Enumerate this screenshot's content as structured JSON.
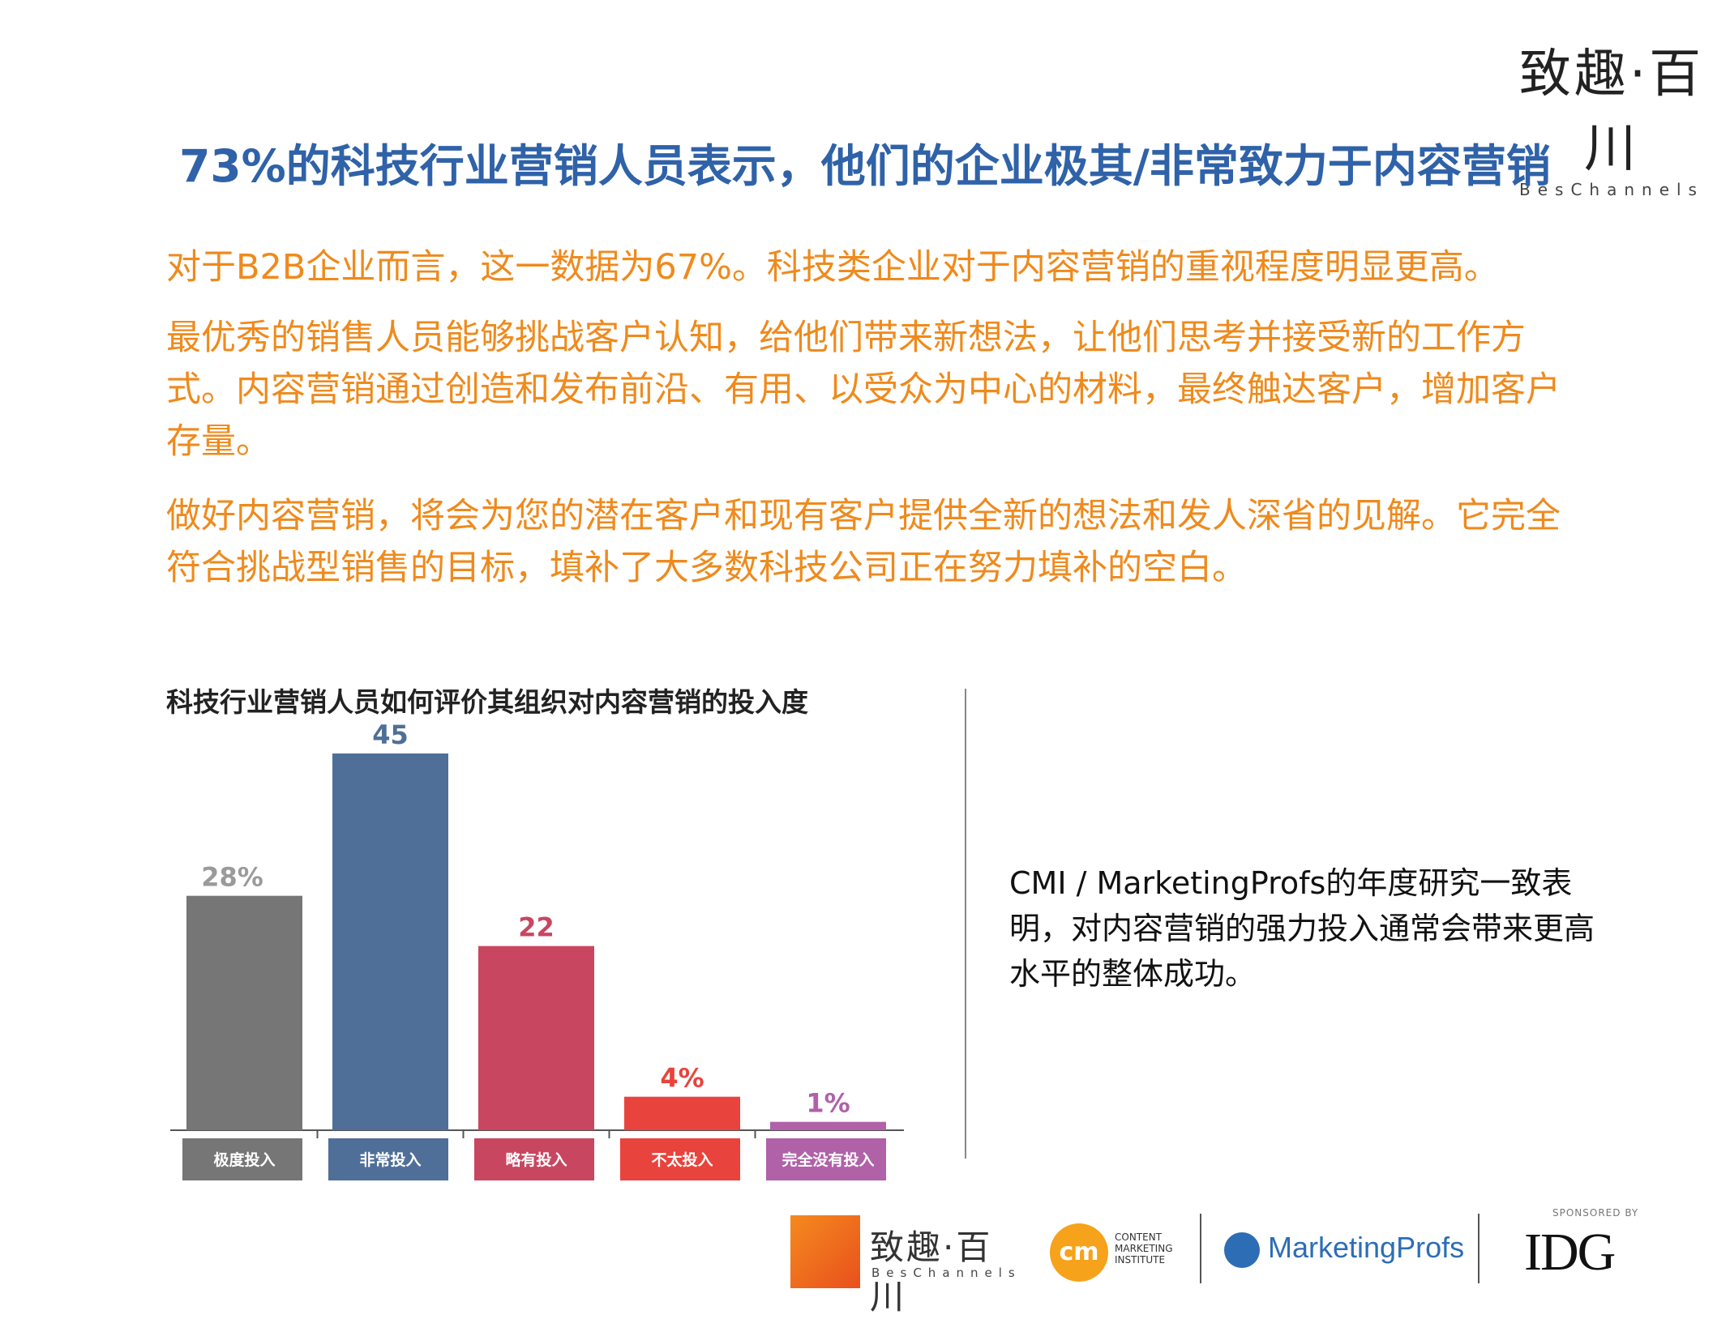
{
  "brand": {
    "cn": "致趣·百川",
    "en": "BesChannels"
  },
  "headline": "73%的科技行业营销人员表示，他们的企业极其/非常致力于内容营销",
  "paragraphs": [
    "对于B2B企业而言，这一数据为67%。科技类企业对于内容营销的重视程度明显更高。",
    "最优秀的销售人员能够挑战客户认知，给他们带来新想法，让他们思考并接受新的工作方式。内容营销通过创造和发布前沿、有用、以受众为中心的材料，最终触达客户，增加客户存量。",
    "做好内容营销，将会为您的潜在客户和现有客户提供全新的想法和发人深省的见解。它完全符合挑战型销售的目标，填补了大多数科技公司正在努力填补的空白。"
  ],
  "side_note": "CMI / MarketingProfs的年度研究一致表明，对内容营销的强力投入通常会带来更高水平的整体成功。",
  "chart_data": {
    "type": "bar",
    "title": "科技行业营销人员如何评价其组织对内容营销的投入度",
    "categories": [
      "极度投入",
      "非常投入",
      "略有投入",
      "不太投入",
      "完全没有投入"
    ],
    "values": [
      28,
      45,
      22,
      4,
      1
    ],
    "value_labels": [
      "28%",
      "45",
      "22",
      "4%",
      "1%"
    ],
    "colors": [
      "#767676",
      "#4f6f98",
      "#c84660",
      "#e8433c",
      "#b061a8"
    ],
    "label_colors": [
      "#9a9a9a",
      "#4f6f98",
      "#c84660",
      "#e8433c",
      "#b061a8"
    ],
    "ylim": [
      0,
      45
    ],
    "grid": false
  },
  "footer": {
    "bes_cn": "致趣·百川",
    "bes_en": "BesChannels",
    "cmi_mark": "cm",
    "cmi_text": "CONTENT MARKETING INSTITUTE",
    "mp_text": "MarketingProfs",
    "idg_sponsored": "SPONSORED BY",
    "idg_text": "IDG"
  }
}
